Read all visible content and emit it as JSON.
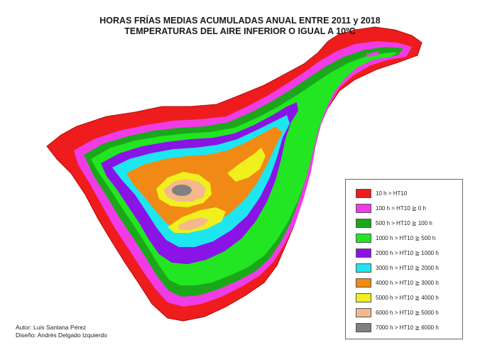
{
  "title": {
    "line1": "HORAS FRÍAS MEDIAS ACUMULADAS ANUAL  ENTRE 2011 y 2018",
    "line2": "TEMPERATURAS DEL AIRE INFERIOR O IGUAL A 10ºC"
  },
  "legend": [
    {
      "label": "10 h > HT10",
      "color": "#ee1c1c"
    },
    {
      "label": "100 h > HT10 ≧ 0 h",
      "color": "#f03ce6"
    },
    {
      "label": "500 h > HT10 ≧ 100 h",
      "color": "#1aa81a"
    },
    {
      "label": "1000 h > HT10 ≧ 500 h",
      "color": "#22e622"
    },
    {
      "label": "2000 h > HT10 ≧ 1000 h",
      "color": "#8a14e6"
    },
    {
      "label": "3000 h > HT10 ≧ 2000 h",
      "color": "#1ee6f0"
    },
    {
      "label": "4000 h > HT10 ≧ 3000 h",
      "color": "#f08a14"
    },
    {
      "label": "5000 h > HT10 ≧ 4000 h",
      "color": "#f0f01e"
    },
    {
      "label": "6000 h > HT10 ≧ 5000 h",
      "color": "#f5b88a"
    },
    {
      "label": "7000 h > HT10 ≧ 6000 h",
      "color": "#808080"
    }
  ],
  "credits": {
    "author": "Autor: Luis Santana Pérez",
    "design": "Diseño: Andrés Delgado Izquierdo"
  }
}
